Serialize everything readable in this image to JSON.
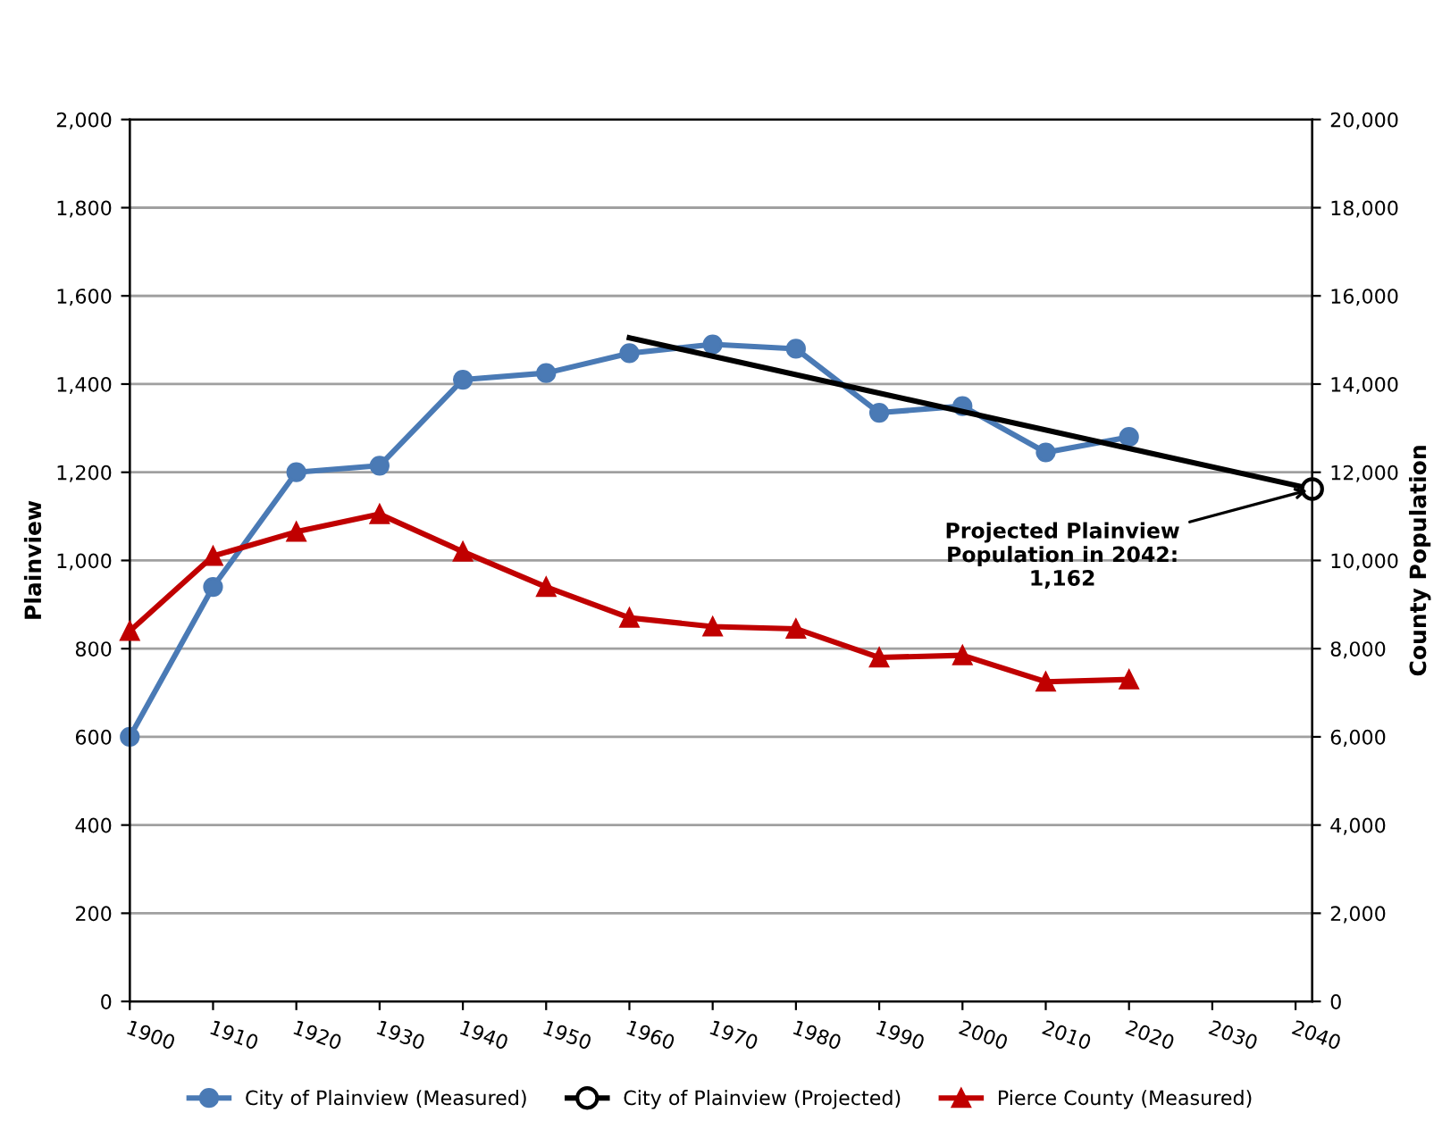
{
  "chart_data": {
    "type": "line",
    "xlabel": null,
    "ylabel": "Plainview",
    "y2label": "County Population",
    "x": [
      1900,
      1910,
      1920,
      1930,
      1940,
      1950,
      1960,
      1970,
      1980,
      1990,
      2000,
      2010,
      2020
    ],
    "series": [
      {
        "name": "City of Plainview (Measured)",
        "color": "#4a7ab5",
        "marker": "circle",
        "values": [
          600,
          940,
          1200,
          1215,
          1410,
          1425,
          1470,
          1490,
          1480,
          1335,
          1350,
          1245,
          1280
        ]
      },
      {
        "name": "City of Plainview (Projected)",
        "color": "#000000",
        "marker": "circle",
        "x": [
          1960,
          2042
        ],
        "values": [
          1505,
          1162
        ]
      },
      {
        "name": "Pierce County (Measured)",
        "color": "#c00000",
        "marker": "triangle",
        "axis": "y2",
        "values": [
          8400,
          10100,
          10650,
          11050,
          10200,
          9400,
          8700,
          8500,
          8450,
          7800,
          7850,
          7250,
          7300
        ]
      }
    ],
    "xlim": [
      1900,
      2042
    ],
    "xticks": [
      1900,
      1910,
      1920,
      1930,
      1940,
      1950,
      1960,
      1970,
      1980,
      1990,
      2000,
      2010,
      2020,
      2030,
      2040
    ],
    "ylim": [
      0,
      2000
    ],
    "yticks": [
      {
        "value": 0,
        "label": "0"
      },
      {
        "value": 200,
        "label": "200"
      },
      {
        "value": 400,
        "label": "400"
      },
      {
        "value": 600,
        "label": "600"
      },
      {
        "value": 800,
        "label": "800"
      },
      {
        "value": 1000,
        "label": "1,000"
      },
      {
        "value": 1200,
        "label": "1,200"
      },
      {
        "value": 1400,
        "label": "1,400"
      },
      {
        "value": 1600,
        "label": "1,600"
      },
      {
        "value": 1800,
        "label": "1,800"
      },
      {
        "value": 2000,
        "label": "2,000"
      }
    ],
    "y2lim": [
      0,
      20000
    ],
    "y2ticks": [
      {
        "value": 0,
        "label": "0"
      },
      {
        "value": 2000,
        "label": "2,000"
      },
      {
        "value": 4000,
        "label": "4,000"
      },
      {
        "value": 6000,
        "label": "6,000"
      },
      {
        "value": 8000,
        "label": "8,000"
      },
      {
        "value": 10000,
        "label": "10,000"
      },
      {
        "value": 12000,
        "label": "12,000"
      },
      {
        "value": 14000,
        "label": "14,000"
      },
      {
        "value": 16000,
        "label": "16,000"
      },
      {
        "value": 18000,
        "label": "18,000"
      },
      {
        "value": 20000,
        "label": "20,000"
      }
    ],
    "annotations": [
      {
        "text": "Projected Plainview\nPopulation in 2042:\n1,162",
        "x": 2042,
        "y": 1162
      }
    ],
    "grid": "y",
    "legend": "bottom"
  }
}
